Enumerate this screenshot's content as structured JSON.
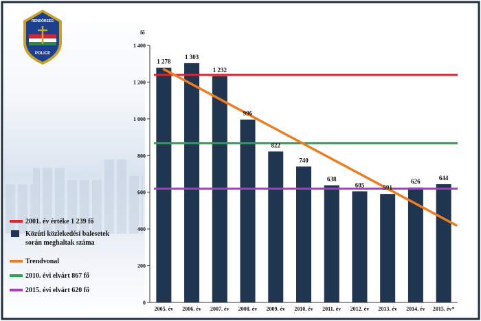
{
  "chart_data": {
    "type": "bar",
    "unit_label": "fő",
    "categories": [
      "2005. év",
      "2006. év",
      "2007. év",
      "2008. év",
      "2009. év",
      "2010. év",
      "2011. év",
      "2012. év",
      "2013. év",
      "2014. év",
      "2015. év*"
    ],
    "values": [
      1278,
      1303,
      1232,
      996,
      822,
      740,
      638,
      605,
      591,
      626,
      644
    ],
    "data_labels": [
      "1 278",
      "1 303",
      "1 232",
      "996",
      "822",
      "740",
      "638",
      "605",
      "591",
      "626",
      "644"
    ],
    "y_ticks": [
      0,
      200,
      400,
      600,
      800,
      1000,
      1200,
      1400
    ],
    "y_tick_labels": [
      "0",
      "200",
      "400",
      "600",
      "800",
      "1 000",
      "1 200",
      "1 400"
    ],
    "ylim": [
      0,
      1400
    ],
    "grid": false,
    "bar_color": "#1f3550",
    "reference_lines": [
      {
        "value": 1239,
        "color": "#e3222a"
      },
      {
        "value": 867,
        "color": "#1faa4b"
      },
      {
        "value": 620,
        "color": "#a43fc0"
      }
    ],
    "trend_line": {
      "color": "#ee7d22",
      "start": {
        "category": "2005. év",
        "value": 1270
      },
      "end_value": 420
    },
    "legend": {
      "placement": "left",
      "entries": [
        {
          "lines": [
            "2001. év értéke 1 239 fő"
          ],
          "color": "#e3222a",
          "kind": "line"
        },
        {
          "lines": [
            "Közúti közlekedési balesetek",
            "során meghaltak száma"
          ],
          "color": "#1f3550",
          "kind": "square"
        },
        {
          "lines": [
            "Trendvonal"
          ],
          "color": "#ee7d22",
          "kind": "line"
        },
        {
          "lines": [
            "2010. évi elvárt   867 fő"
          ],
          "color": "#1faa4b",
          "kind": "line"
        },
        {
          "lines": [
            "2015. évi elvárt   620 fő"
          ],
          "color": "#a43fc0",
          "kind": "line"
        }
      ]
    }
  },
  "logo": {
    "top_text": "RENDŐRSÉG",
    "bottom_text": "POLICE",
    "colors": {
      "shield": "#1d3f8f",
      "gold": "#c9a227",
      "red": "#d22630",
      "green": "#2e8b3a"
    }
  },
  "frame_color": "#1c2d44"
}
